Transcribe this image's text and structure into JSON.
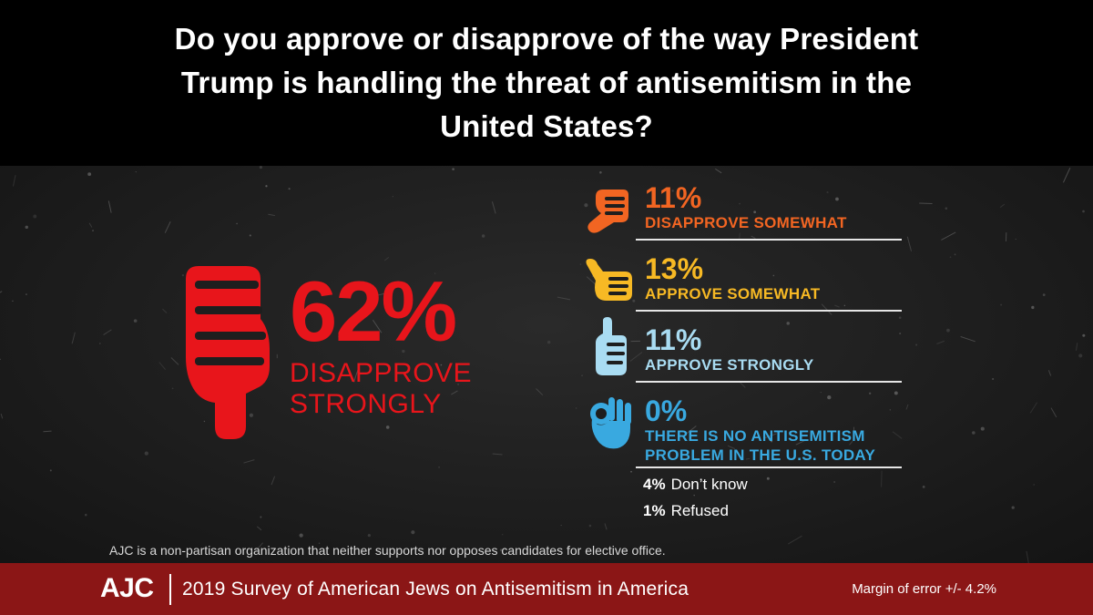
{
  "header": {
    "question": "Do you approve or disapprove of the way President Trump is handling the threat of antisemitism in the United States?"
  },
  "colors": {
    "disapprove_strongly": "#e8151b",
    "disapprove_somewhat": "#f26522",
    "approve_somewhat": "#f7b924",
    "approve_strongly": "#a9dcf2",
    "no_problem": "#39a9e0",
    "footer": "#8b1616"
  },
  "chart_data": {
    "type": "table",
    "categories": [
      "DISAPPROVE STRONGLY",
      "DISAPPROVE SOMEWHAT",
      "APPROVE SOMEWHAT",
      "APPROVE STRONGLY",
      "THERE IS NO ANTISEMITISM PROBLEM IN THE U.S. TODAY",
      "Don’t know",
      "Refused"
    ],
    "values": [
      62,
      11,
      13,
      11,
      0,
      4,
      1
    ],
    "display": [
      "62%",
      "11%",
      "13%",
      "11%",
      "0%",
      "4%",
      "1%"
    ],
    "icons": [
      "thumb-down-icon",
      "thumb-sideways-down-icon",
      "thumb-sideways-up-icon",
      "thumb-up-icon",
      "ok-hand-icon",
      "",
      ""
    ]
  },
  "disclaimer": "AJC is a non-partisan organization that neither supports nor opposes candidates for elective office.",
  "footer": {
    "logo": "AJC",
    "survey_title": "2019 Survey of American Jews on Antisemitism in America",
    "margin_of_error": "Margin of error +/- 4.2%"
  }
}
